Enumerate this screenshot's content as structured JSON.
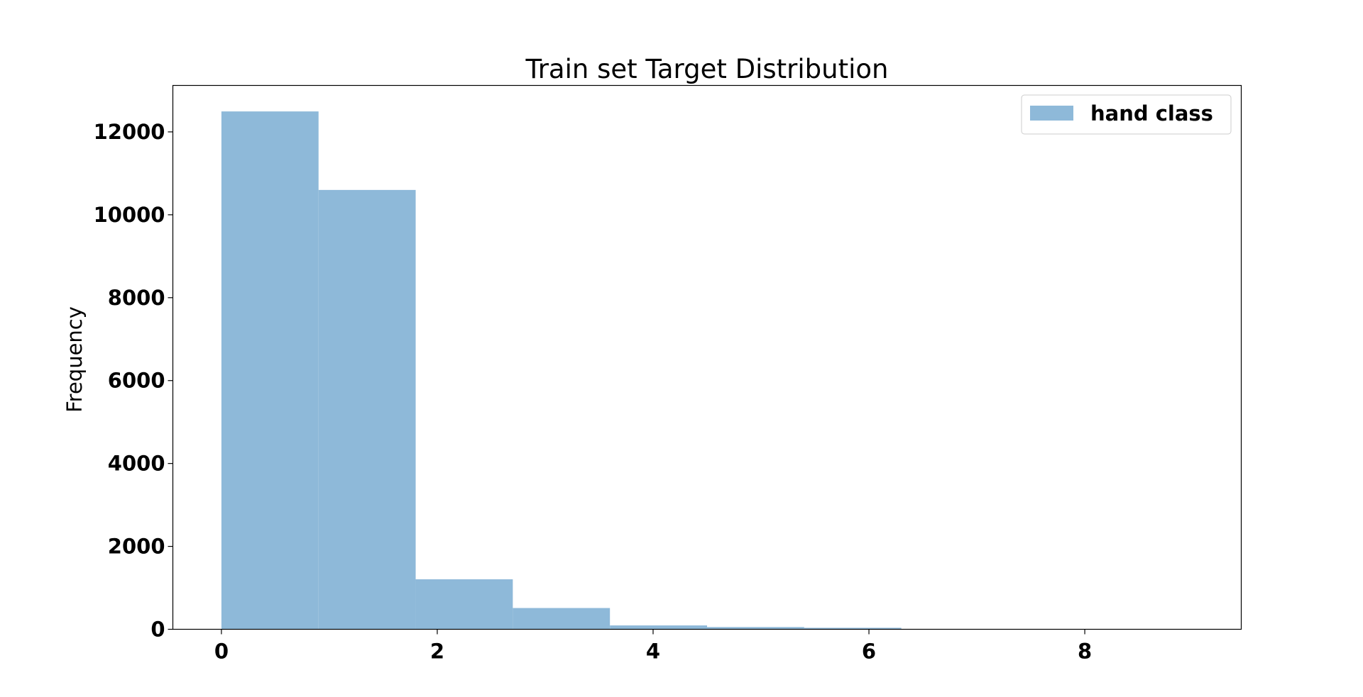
{
  "chart_data": {
    "type": "bar",
    "title": "Train set Target Distribution",
    "xlabel": "",
    "ylabel": "Frequency",
    "xlim": [
      -0.45,
      9.45
    ],
    "ylim": [
      0,
      13120
    ],
    "xticks": [
      0,
      2,
      4,
      6,
      8
    ],
    "yticks": [
      0,
      2000,
      4000,
      6000,
      8000,
      10000,
      12000
    ],
    "grid": false,
    "legend_position": "top-right",
    "color": "#8eb9d9",
    "series": [
      {
        "name": "hand class",
        "bins": [
          {
            "start": 0.0,
            "end": 0.9,
            "count": 12493
          },
          {
            "start": 0.9,
            "end": 1.8,
            "count": 10599
          },
          {
            "start": 1.8,
            "end": 2.7,
            "count": 1206
          },
          {
            "start": 2.7,
            "end": 3.6,
            "count": 513
          },
          {
            "start": 3.6,
            "end": 4.5,
            "count": 93
          },
          {
            "start": 4.5,
            "end": 5.4,
            "count": 54
          },
          {
            "start": 5.4,
            "end": 6.3,
            "count": 36
          },
          {
            "start": 6.3,
            "end": 7.2,
            "count": 6
          },
          {
            "start": 7.2,
            "end": 8.1,
            "count": 5
          },
          {
            "start": 8.1,
            "end": 9.0,
            "count": 5
          }
        ]
      }
    ]
  }
}
